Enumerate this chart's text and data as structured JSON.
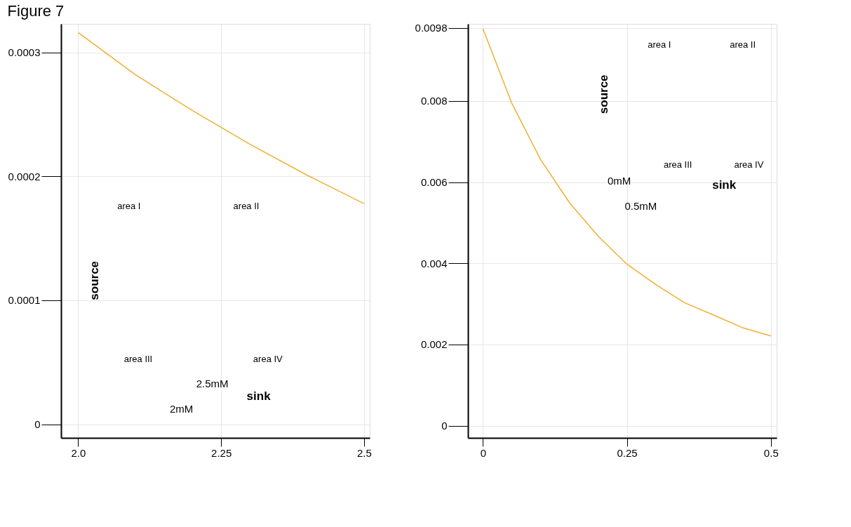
{
  "chart_data": [
    {
      "type": "line",
      "title": "Figure 7",
      "x": [
        2.0,
        2.1,
        2.2,
        2.3,
        2.4,
        2.5
      ],
      "series": [
        {
          "color": "#f0b030",
          "values": [
            0.000316,
            0.000282,
            0.000253,
            0.000226,
            0.000201,
            0.000178
          ]
        }
      ],
      "xlim": [
        1.97,
        2.51
      ],
      "xticks": [
        {
          "value": 2,
          "label": "2.0"
        },
        2.25,
        2.5
      ],
      "ylim": [
        -1.1e-05,
        0.000323
      ],
      "yticks": [
        0,
        0.0001,
        0.0002,
        0.0003
      ],
      "grid": true,
      "marker": "none",
      "line_style": "solid",
      "annotations": [
        "area I",
        "area II",
        "area III",
        "area IV",
        "source",
        "sink",
        "2mM",
        "2.5mM"
      ]
    },
    {
      "type": "line",
      "x": [
        0,
        0.05,
        0.1,
        0.15,
        0.2,
        0.25,
        0.3,
        0.35,
        0.4,
        0.45,
        0.5
      ],
      "series": [
        {
          "color": "#f0b030",
          "values": [
            0.00978,
            0.00795,
            0.00656,
            0.0055,
            0.00467,
            0.00398,
            0.00348,
            0.00303,
            0.00273,
            0.00242,
            0.00221
          ]
        }
      ],
      "xlim": [
        -0.026,
        0.51
      ],
      "xticks": [
        0,
        0.25,
        0.5
      ],
      "ylim": [
        -0.0003,
        0.0099
      ],
      "yticks": [
        0,
        0.002,
        0.004,
        0.006,
        0.008,
        0.0098
      ],
      "grid": true,
      "marker": "none",
      "line_style": "solid",
      "annotations": [
        "area I",
        "area II",
        "area III",
        "area IV",
        "source",
        "sink",
        "0mM",
        "0.5mM"
      ]
    }
  ]
}
